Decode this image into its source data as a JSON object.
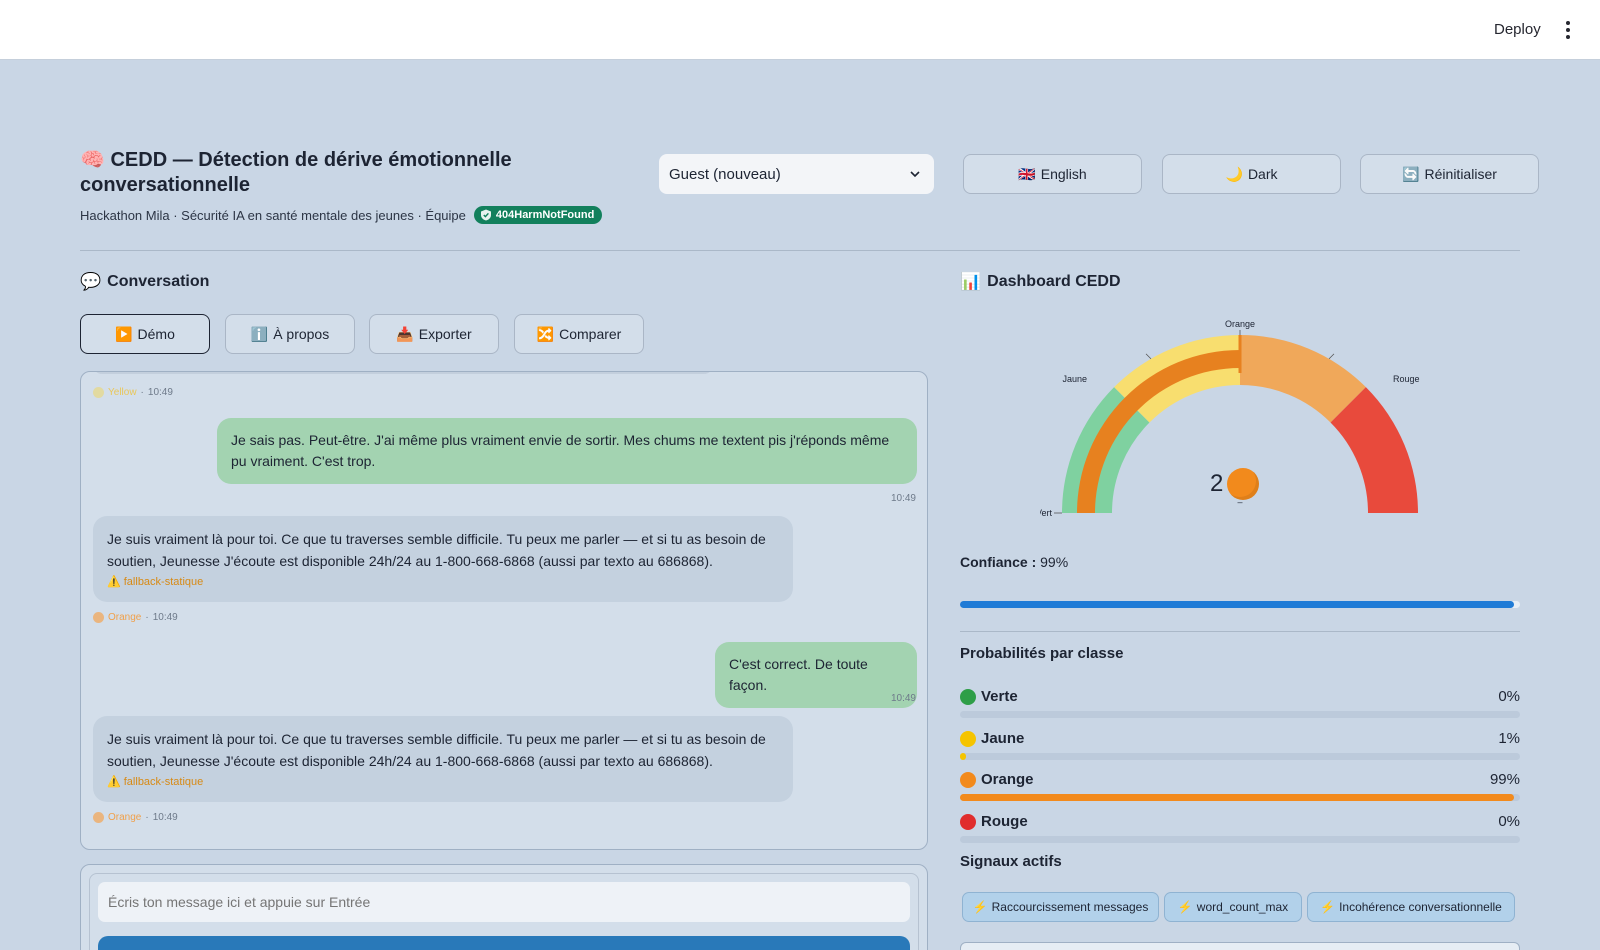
{
  "topbar": {
    "deploy_label": "Deploy"
  },
  "header": {
    "title_icon": "🧠",
    "title": "CEDD — Détection de dérive émotionnelle conversationnelle",
    "subtitle": "Hackathon Mila · Sécurité IA en santé mentale des jeunes · Équipe",
    "team_badge": "404HarmNotFound"
  },
  "controls": {
    "user_select": "Guest (nouveau)",
    "language": {
      "icon": "🇬🇧",
      "label": "English"
    },
    "theme": {
      "icon": "🌙",
      "label": "Dark"
    },
    "reset": {
      "icon": "🔄",
      "label": "Réinitialiser"
    }
  },
  "conversation": {
    "heading_icon": "💬",
    "heading": "Conversation",
    "tabs": [
      {
        "icon": "▶️",
        "label": "Démo"
      },
      {
        "icon": "ℹ️",
        "label": "À propos"
      },
      {
        "icon": "📥",
        "label": "Exporter"
      },
      {
        "icon": "🔀",
        "label": "Comparer"
      }
    ],
    "messages": [
      {
        "role": "meta",
        "level": "Yellow",
        "time": "10:49"
      },
      {
        "role": "user",
        "text": "Je sais pas. Peut-être. J'ai même plus vraiment envie de sortir. Mes chums me textent pis j'réponds même pu vraiment. C'est trop.",
        "time": "10:49"
      },
      {
        "role": "bot",
        "text": "Je suis vraiment là pour toi. Ce que tu traverses semble difficile. Tu peux me parler — et si tu as besoin de soutien, Jeunesse J'écoute est disponible 24h/24 au 1-800-668-6868 (aussi par texto au 686868).",
        "tag": "⚠️ fallback-statique",
        "level": "Orange",
        "time": "10:49"
      },
      {
        "role": "user",
        "text": "C'est correct. De toute façon.",
        "time": "10:49"
      },
      {
        "role": "bot",
        "text": "Je suis vraiment là pour toi. Ce que tu traverses semble difficile. Tu peux me parler — et si tu as besoin de soutien, Jeunesse J'écoute est disponible 24h/24 au 1-800-668-6868 (aussi par texto au 686868).",
        "tag": "⚠️ fallback-statique",
        "level": "Orange",
        "time": "10:49"
      }
    ],
    "input_placeholder": "Écris ton message ici et appuie sur Entrée"
  },
  "dashboard": {
    "heading_icon": "📊",
    "heading": "Dashboard CEDD",
    "gauge": {
      "value": 2,
      "value_max": 3,
      "value_icon": "🟠",
      "labels": [
        "Vert",
        "Jaune",
        "Orange",
        "Rouge"
      ],
      "zone_colors": [
        "#7fd1a0",
        "#f8de6f",
        "#f0a85a",
        "#e84a3c"
      ],
      "needle_color": "#e7811f",
      "sub_label": "–"
    },
    "confidence": {
      "label": "Confiance :",
      "value": "99%",
      "fraction": 0.99
    },
    "probabilities_title": "Probabilités par classe",
    "probabilities": [
      {
        "label": "Verte",
        "value": "0%",
        "fraction": 0.0,
        "color": "#2e9e48"
      },
      {
        "label": "Jaune",
        "value": "1%",
        "fraction": 0.01,
        "color": "#f5c400"
      },
      {
        "label": "Orange",
        "value": "99%",
        "fraction": 0.99,
        "color": "#f28a1c"
      },
      {
        "label": "Rouge",
        "value": "0%",
        "fraction": 0.0,
        "color": "#e02d2d"
      }
    ],
    "signals_title": "Signaux actifs",
    "signals": [
      {
        "icon": "⚡",
        "label": "Raccourcissement messages"
      },
      {
        "icon": "⚡",
        "label": "word_count_max"
      },
      {
        "icon": "⚡",
        "label": "Incohérence conversationnelle"
      }
    ]
  }
}
